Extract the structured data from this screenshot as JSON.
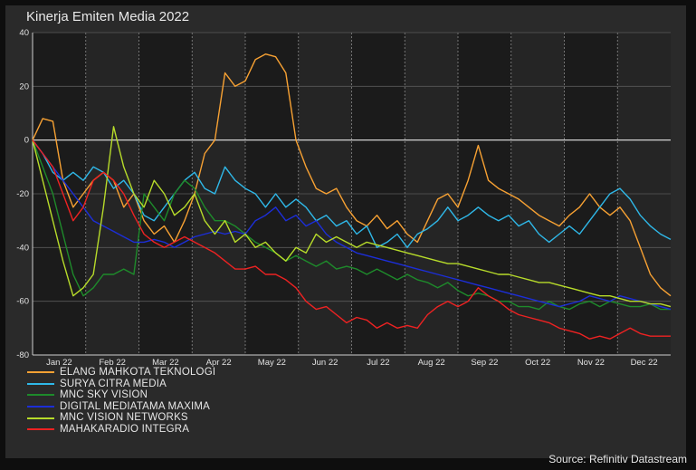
{
  "chart_data": {
    "type": "line",
    "title": "Kinerja Emiten Media 2022",
    "source": "Source: Refinitiv Datastream",
    "xlabel": "",
    "ylabel": "",
    "ylim": [
      -80,
      40
    ],
    "yticks": [
      40,
      20,
      0,
      -20,
      -40,
      -60,
      -80
    ],
    "month_labels": [
      "Jan 22",
      "Feb 22",
      "Mar 22",
      "Apr 22",
      "May 22",
      "Jun 22",
      "Jul 22",
      "Aug 22",
      "Sep 22",
      "Oct 22",
      "Nov 22",
      "Dec 22"
    ],
    "grid": true,
    "legend_position": "bottom-left",
    "series": [
      {
        "name": "ELANG MAHKOTA TEKNOLOGI",
        "color": "#f7a133",
        "values": [
          0,
          8,
          7,
          -15,
          -25,
          -20,
          -15,
          -12,
          -15,
          -25,
          -20,
          -30,
          -35,
          -32,
          -38,
          -30,
          -20,
          -5,
          0,
          25,
          20,
          22,
          30,
          32,
          31,
          25,
          0,
          -10,
          -18,
          -20,
          -18,
          -25,
          -30,
          -32,
          -28,
          -33,
          -30,
          -35,
          -38,
          -30,
          -22,
          -20,
          -25,
          -15,
          -2,
          -15,
          -18,
          -20,
          -22,
          -25,
          -28,
          -30,
          -32,
          -28,
          -25,
          -20,
          -25,
          -28,
          -25,
          -30,
          -40,
          -50,
          -55,
          -58
        ]
      },
      {
        "name": "SURYA CITRA MEDIA",
        "color": "#2fb8e8",
        "values": [
          0,
          -5,
          -12,
          -15,
          -12,
          -15,
          -10,
          -12,
          -18,
          -15,
          -20,
          -28,
          -30,
          -25,
          -20,
          -15,
          -12,
          -18,
          -20,
          -10,
          -15,
          -18,
          -20,
          -25,
          -20,
          -25,
          -22,
          -25,
          -30,
          -28,
          -32,
          -30,
          -35,
          -32,
          -40,
          -38,
          -35,
          -40,
          -35,
          -33,
          -30,
          -25,
          -30,
          -28,
          -25,
          -28,
          -30,
          -28,
          -32,
          -30,
          -35,
          -38,
          -35,
          -32,
          -35,
          -30,
          -25,
          -20,
          -18,
          -22,
          -28,
          -32,
          -35,
          -37
        ]
      },
      {
        "name": "MNC SKY VISION",
        "color": "#1e8b2b",
        "values": [
          0,
          -10,
          -20,
          -35,
          -50,
          -58,
          -55,
          -50,
          -50,
          -48,
          -50,
          -20,
          -25,
          -30,
          -20,
          -15,
          -18,
          -25,
          -30,
          -30,
          -32,
          -35,
          -38,
          -40,
          -42,
          -45,
          -43,
          -45,
          -47,
          -45,
          -48,
          -47,
          -48,
          -50,
          -48,
          -50,
          -52,
          -50,
          -52,
          -53,
          -55,
          -53,
          -56,
          -58,
          -57,
          -58,
          -60,
          -60,
          -62,
          -62,
          -63,
          -60,
          -62,
          -63,
          -61,
          -60,
          -62,
          -60,
          -61,
          -62,
          -62,
          -61,
          -63,
          -63
        ]
      },
      {
        "name": "DIGITAL MEDIATAMA MAXIMA",
        "color": "#1c2ed8",
        "values": [
          0,
          -5,
          -10,
          -15,
          -20,
          -25,
          -30,
          -32,
          -34,
          -36,
          -38,
          -38,
          -37,
          -38,
          -40,
          -38,
          -36,
          -35,
          -34,
          -35,
          -34,
          -35,
          -30,
          -28,
          -25,
          -30,
          -28,
          -32,
          -30,
          -35,
          -38,
          -40,
          -42,
          -43,
          -44,
          -45,
          -46,
          -47,
          -48,
          -49,
          -50,
          -51,
          -52,
          -53,
          -54,
          -55,
          -56,
          -57,
          -58,
          -59,
          -60,
          -61,
          -62,
          -61,
          -60,
          -58,
          -59,
          -60,
          -58,
          -59,
          -60,
          -61,
          -62,
          -63
        ]
      },
      {
        "name": "MNC VISION NETWORKS",
        "color": "#b7db2a",
        "values": [
          0,
          -15,
          -30,
          -45,
          -58,
          -55,
          -50,
          -25,
          5,
          -10,
          -20,
          -25,
          -15,
          -20,
          -28,
          -25,
          -20,
          -30,
          -35,
          -30,
          -38,
          -35,
          -40,
          -38,
          -42,
          -45,
          -40,
          -42,
          -35,
          -38,
          -36,
          -38,
          -40,
          -38,
          -39,
          -40,
          -41,
          -42,
          -43,
          -44,
          -45,
          -46,
          -46,
          -47,
          -48,
          -49,
          -50,
          -50,
          -51,
          -52,
          -53,
          -53,
          -54,
          -55,
          -56,
          -57,
          -58,
          -58,
          -59,
          -60,
          -60,
          -61,
          -61,
          -62
        ]
      },
      {
        "name": "MAHAKARADIO INTEGRA",
        "color": "#ee2222",
        "values": [
          0,
          -5,
          -10,
          -20,
          -30,
          -25,
          -15,
          -12,
          -15,
          -20,
          -28,
          -35,
          -38,
          -40,
          -38,
          -36,
          -38,
          -40,
          -42,
          -45,
          -48,
          -48,
          -47,
          -50,
          -50,
          -52,
          -55,
          -60,
          -63,
          -62,
          -65,
          -68,
          -66,
          -67,
          -70,
          -68,
          -70,
          -69,
          -70,
          -65,
          -62,
          -60,
          -62,
          -60,
          -55,
          -58,
          -60,
          -63,
          -65,
          -66,
          -67,
          -68,
          -70,
          -71,
          -72,
          -74,
          -73,
          -74,
          -72,
          -70,
          -72,
          -73,
          -73,
          -73
        ]
      }
    ]
  }
}
